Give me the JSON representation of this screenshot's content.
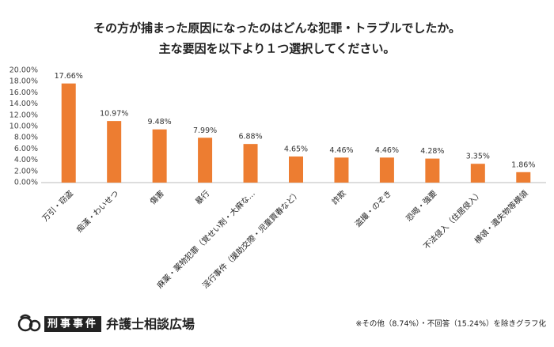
{
  "chart_data": {
    "type": "bar",
    "title": "その方が捕まった原因になったのはどんな犯罪・トラブルでしたか。",
    "subtitle": "主な要因を以下より１つ選択してください。",
    "categories": [
      "万引・窃盗",
      "痴漢・わいせつ",
      "傷害",
      "暴行",
      "麻薬・薬物犯罪（覚せい剤・大麻な…",
      "淫行事件（援助交際・児童買春など）",
      "詐欺",
      "盗撮・のぞき",
      "恐喝・強要",
      "不法侵入（住居侵入）",
      "横領・遺失物等横領"
    ],
    "values": [
      17.66,
      10.97,
      9.48,
      7.99,
      6.88,
      4.65,
      4.46,
      4.46,
      4.28,
      3.35,
      1.86
    ],
    "value_labels": [
      "17.66%",
      "10.97%",
      "9.48%",
      "7.99%",
      "6.88%",
      "4.65%",
      "4.46%",
      "4.46%",
      "4.28%",
      "3.35%",
      "1.86%"
    ],
    "color": "#ed7d31",
    "ylim": [
      0,
      20
    ],
    "yticks": [
      {
        "value": 0,
        "label": "0.00%"
      },
      {
        "value": 2,
        "label": "2.00%"
      },
      {
        "value": 4,
        "label": "4.00%"
      },
      {
        "value": 6,
        "label": "6.00%"
      },
      {
        "value": 8,
        "label": "8.00%"
      },
      {
        "value": 10,
        "label": "10.00%"
      },
      {
        "value": 12,
        "label": "12.00%"
      },
      {
        "value": 14,
        "label": "14.00%"
      },
      {
        "value": 16,
        "label": "16.00%"
      },
      {
        "value": 18,
        "label": "18.00%"
      },
      {
        "value": 20,
        "label": "20.00%"
      }
    ],
    "grid": false,
    "note": "※その他（8.74%）・不回答（15.24%）を除きグラフ化"
  },
  "logo": {
    "badge": "刑事事件",
    "name": "弁護士相談広場"
  }
}
